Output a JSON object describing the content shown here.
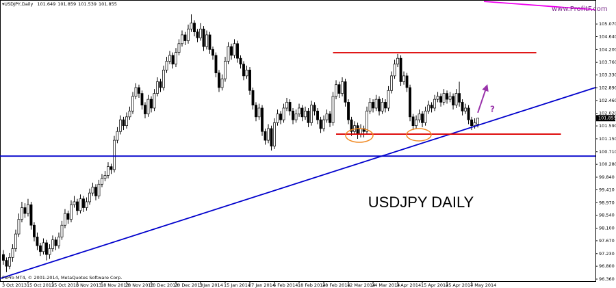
{
  "chart_data": {
    "type": "candlestick",
    "title": "USDJPY,Daily",
    "watermark": "www.ProfitF.com",
    "copyright": "FxPro MT4, © 2001-2014, MetaQuotes Software Corp.",
    "annotation": "USDJPY  DAILY",
    "question": "?",
    "bull_color": "#ffffff",
    "bear_color": "#000000",
    "outline_color": "#000000",
    "ohlc": [
      [
        97.2,
        97.35,
        96.85,
        97.0
      ],
      [
        97.0,
        97.1,
        96.6,
        96.8
      ],
      [
        96.8,
        97.25,
        96.7,
        97.1
      ],
      [
        97.1,
        97.55,
        96.95,
        97.4
      ],
      [
        97.4,
        98.05,
        97.3,
        97.9
      ],
      [
        97.9,
        98.6,
        97.8,
        98.4
      ],
      [
        98.4,
        99.0,
        98.3,
        98.8
      ],
      [
        98.8,
        98.95,
        98.45,
        98.6
      ],
      [
        98.6,
        99.1,
        98.5,
        98.9
      ],
      [
        98.9,
        99.0,
        98.05,
        98.2
      ],
      [
        98.2,
        98.3,
        97.65,
        97.8
      ],
      [
        97.8,
        97.95,
        97.35,
        97.5
      ],
      [
        97.5,
        97.6,
        97.15,
        97.3
      ],
      [
        97.3,
        97.75,
        97.2,
        97.6
      ],
      [
        97.6,
        97.7,
        97.0,
        97.2
      ],
      [
        97.2,
        97.55,
        97.05,
        97.4
      ],
      [
        97.4,
        97.85,
        97.3,
        97.7
      ],
      [
        97.7,
        97.8,
        97.35,
        97.5
      ],
      [
        97.5,
        97.95,
        97.4,
        97.8
      ],
      [
        97.8,
        98.35,
        97.7,
        98.2
      ],
      [
        98.2,
        98.75,
        98.1,
        98.6
      ],
      [
        98.6,
        98.7,
        98.25,
        98.4
      ],
      [
        98.4,
        99.05,
        98.3,
        98.9
      ],
      [
        98.9,
        99.2,
        98.8,
        99.0
      ],
      [
        99.0,
        99.1,
        98.55,
        98.7
      ],
      [
        98.7,
        99.25,
        98.6,
        99.1
      ],
      [
        99.1,
        99.2,
        98.65,
        98.8
      ],
      [
        98.8,
        99.15,
        98.7,
        99.0
      ],
      [
        99.0,
        99.45,
        98.9,
        99.3
      ],
      [
        99.3,
        99.65,
        99.2,
        99.5
      ],
      [
        99.5,
        99.6,
        99.05,
        99.2
      ],
      [
        99.2,
        99.75,
        99.1,
        99.6
      ],
      [
        99.6,
        99.95,
        99.5,
        99.8
      ],
      [
        99.8,
        100.05,
        99.7,
        99.9
      ],
      [
        99.9,
        100.35,
        99.8,
        100.2
      ],
      [
        100.2,
        100.3,
        99.95,
        100.1
      ],
      [
        100.1,
        101.25,
        100.0,
        101.1
      ],
      [
        101.1,
        101.55,
        101.0,
        101.4
      ],
      [
        101.4,
        101.95,
        101.3,
        101.8
      ],
      [
        101.8,
        101.9,
        101.45,
        101.6
      ],
      [
        101.6,
        102.05,
        101.5,
        101.9
      ],
      [
        101.9,
        102.25,
        101.8,
        102.1
      ],
      [
        102.1,
        102.75,
        102.0,
        102.6
      ],
      [
        102.6,
        103.05,
        102.5,
        102.9
      ],
      [
        102.9,
        103.0,
        102.55,
        102.7
      ],
      [
        102.7,
        102.8,
        102.15,
        102.3
      ],
      [
        102.3,
        102.4,
        101.85,
        102.0
      ],
      [
        102.0,
        102.65,
        101.9,
        102.5
      ],
      [
        102.5,
        102.6,
        102.05,
        102.2
      ],
      [
        102.2,
        102.85,
        102.1,
        102.7
      ],
      [
        102.7,
        103.25,
        102.6,
        103.1
      ],
      [
        103.1,
        103.2,
        102.75,
        102.9
      ],
      [
        102.9,
        103.65,
        102.8,
        103.5
      ],
      [
        103.5,
        103.95,
        103.4,
        103.8
      ],
      [
        103.8,
        104.15,
        103.7,
        104.0
      ],
      [
        104.0,
        104.1,
        103.55,
        103.7
      ],
      [
        103.7,
        104.25,
        103.6,
        104.1
      ],
      [
        104.1,
        104.55,
        104.0,
        104.4
      ],
      [
        104.4,
        104.85,
        104.3,
        104.7
      ],
      [
        104.7,
        104.8,
        104.35,
        104.5
      ],
      [
        104.5,
        105.05,
        104.4,
        104.9
      ],
      [
        104.9,
        105.4,
        104.8,
        105.1
      ],
      [
        105.1,
        105.2,
        104.65,
        104.8
      ],
      [
        104.8,
        104.9,
        104.45,
        104.6
      ],
      [
        104.6,
        105.1,
        104.5,
        104.9
      ],
      [
        104.9,
        105.0,
        104.15,
        104.3
      ],
      [
        104.3,
        104.85,
        104.2,
        104.7
      ],
      [
        104.7,
        104.8,
        104.05,
        104.2
      ],
      [
        104.2,
        104.3,
        103.85,
        104.0
      ],
      [
        104.0,
        104.1,
        103.25,
        103.4
      ],
      [
        103.4,
        103.5,
        102.75,
        102.9
      ],
      [
        102.9,
        103.35,
        102.8,
        103.2
      ],
      [
        103.2,
        103.95,
        103.1,
        103.8
      ],
      [
        103.8,
        104.45,
        103.7,
        104.3
      ],
      [
        104.3,
        104.4,
        103.85,
        104.0
      ],
      [
        104.0,
        104.55,
        103.9,
        104.4
      ],
      [
        104.4,
        104.5,
        103.75,
        103.9
      ],
      [
        103.9,
        104.0,
        103.55,
        103.7
      ],
      [
        103.7,
        103.8,
        103.15,
        103.3
      ],
      [
        103.3,
        103.65,
        103.2,
        103.5
      ],
      [
        103.5,
        103.6,
        102.65,
        102.8
      ],
      [
        102.8,
        102.9,
        102.15,
        102.3
      ],
      [
        102.3,
        102.4,
        101.75,
        101.9
      ],
      [
        101.9,
        102.35,
        101.8,
        102.2
      ],
      [
        102.2,
        102.3,
        101.25,
        101.4
      ],
      [
        101.4,
        101.5,
        100.95,
        101.1
      ],
      [
        101.1,
        101.65,
        101.0,
        101.5
      ],
      [
        101.5,
        101.6,
        100.75,
        100.9
      ],
      [
        100.9,
        101.85,
        100.8,
        101.7
      ],
      [
        101.7,
        102.15,
        101.6,
        102.0
      ],
      [
        102.0,
        102.1,
        101.65,
        101.8
      ],
      [
        101.8,
        102.35,
        101.7,
        102.2
      ],
      [
        102.2,
        102.55,
        102.1,
        102.4
      ],
      [
        102.4,
        102.5,
        101.95,
        102.1
      ],
      [
        102.1,
        102.2,
        101.65,
        101.8
      ],
      [
        101.8,
        102.15,
        101.7,
        102.0
      ],
      [
        102.0,
        102.35,
        101.9,
        102.2
      ],
      [
        102.2,
        102.3,
        101.75,
        101.9
      ],
      [
        101.9,
        102.25,
        101.8,
        102.1
      ],
      [
        102.1,
        102.2,
        101.55,
        101.7
      ],
      [
        101.7,
        102.45,
        101.6,
        102.3
      ],
      [
        102.3,
        102.4,
        101.95,
        102.1
      ],
      [
        102.1,
        102.2,
        101.65,
        101.8
      ],
      [
        101.8,
        101.9,
        101.35,
        101.5
      ],
      [
        101.5,
        101.95,
        101.4,
        101.8
      ],
      [
        101.8,
        102.15,
        101.7,
        102.0
      ],
      [
        102.0,
        102.1,
        101.55,
        101.7
      ],
      [
        101.7,
        102.75,
        101.6,
        102.6
      ],
      [
        102.6,
        103.15,
        102.5,
        103.0
      ],
      [
        103.0,
        103.1,
        102.55,
        102.7
      ],
      [
        102.7,
        103.25,
        102.6,
        103.1
      ],
      [
        103.1,
        103.2,
        102.25,
        102.4
      ],
      [
        102.4,
        102.5,
        101.65,
        101.8
      ],
      [
        101.8,
        101.9,
        101.25,
        101.4
      ],
      [
        101.4,
        101.75,
        101.3,
        101.6
      ],
      [
        101.6,
        101.7,
        101.15,
        101.3
      ],
      [
        101.3,
        101.65,
        101.2,
        101.5
      ],
      [
        101.5,
        101.6,
        101.2,
        101.4
      ],
      [
        101.4,
        102.25,
        101.3,
        102.1
      ],
      [
        102.1,
        102.55,
        102.0,
        102.4
      ],
      [
        102.4,
        102.5,
        102.05,
        102.2
      ],
      [
        102.2,
        102.65,
        102.1,
        102.5
      ],
      [
        102.5,
        102.6,
        101.95,
        102.1
      ],
      [
        102.1,
        102.55,
        102.0,
        102.4
      ],
      [
        102.4,
        102.5,
        102.05,
        102.2
      ],
      [
        102.2,
        102.95,
        102.1,
        102.8
      ],
      [
        102.8,
        103.45,
        102.7,
        103.3
      ],
      [
        103.3,
        103.85,
        103.2,
        103.7
      ],
      [
        103.7,
        104.05,
        103.6,
        103.9
      ],
      [
        103.9,
        104.0,
        102.95,
        103.1
      ],
      [
        103.1,
        103.45,
        103.0,
        103.3
      ],
      [
        103.3,
        103.4,
        102.75,
        102.9
      ],
      [
        102.9,
        103.0,
        101.75,
        101.9
      ],
      [
        101.9,
        102.0,
        101.45,
        101.6
      ],
      [
        101.6,
        101.95,
        101.5,
        101.8
      ],
      [
        101.8,
        102.15,
        101.7,
        102.0
      ],
      [
        102.0,
        102.1,
        101.55,
        101.7
      ],
      [
        101.7,
        102.25,
        101.6,
        102.1
      ],
      [
        102.1,
        102.45,
        102.0,
        102.3
      ],
      [
        102.3,
        102.4,
        102.05,
        102.2
      ],
      [
        102.2,
        102.65,
        102.1,
        102.5
      ],
      [
        102.5,
        102.75,
        102.4,
        102.6
      ],
      [
        102.6,
        102.7,
        102.25,
        102.4
      ],
      [
        102.4,
        102.85,
        102.3,
        102.7
      ],
      [
        102.7,
        102.8,
        102.35,
        102.5
      ],
      [
        102.5,
        102.75,
        102.4,
        102.6
      ],
      [
        102.6,
        102.7,
        102.15,
        102.3
      ],
      [
        102.3,
        102.85,
        102.2,
        102.7
      ],
      [
        102.7,
        103.1,
        102.25,
        102.4
      ],
      [
        102.4,
        102.5,
        101.95,
        102.1
      ],
      [
        102.1,
        102.35,
        102.0,
        102.2
      ],
      [
        102.2,
        102.3,
        101.65,
        101.8
      ],
      [
        101.8,
        101.9,
        101.45,
        101.6
      ],
      [
        101.6,
        101.85,
        101.5,
        101.7
      ],
      [
        101.649,
        101.859,
        101.539,
        101.855
      ]
    ],
    "xlim": [
      -1.1,
      192.2
    ],
    "xticks": [
      {
        "value": 0,
        "label": "3 Oct 2013"
      },
      {
        "value": 8,
        "label": "15 Oct 2013"
      },
      {
        "value": 16,
        "label": "25 Oct 2013"
      },
      {
        "value": 24,
        "label": "6 Nov 2013"
      },
      {
        "value": 32,
        "label": "18 Nov 2013"
      },
      {
        "value": 40,
        "label": "28 Nov 2013"
      },
      {
        "value": 48,
        "label": "10 Dec 2013"
      },
      {
        "value": 56,
        "label": "20 Dec 2013"
      },
      {
        "value": 64,
        "label": "3 Jan 2014"
      },
      {
        "value": 72,
        "label": "15 Jan 2014"
      },
      {
        "value": 80,
        "label": "27 Jan 2014"
      },
      {
        "value": 88,
        "label": "6 Feb 2014"
      },
      {
        "value": 96,
        "label": "18 Feb 2014"
      },
      {
        "value": 104,
        "label": "28 Feb 2014"
      },
      {
        "value": 112,
        "label": "12 Mar 2014"
      },
      {
        "value": 120,
        "label": "24 Mar 2014"
      },
      {
        "value": 128,
        "label": "3 Apr 2014"
      },
      {
        "value": 136,
        "label": "15 Apr 2014"
      },
      {
        "value": 144,
        "label": "25 Apr 2014"
      },
      {
        "value": 152,
        "label": "7 May 2014"
      }
    ],
    "ylim": [
      96.29,
      105.89
    ],
    "yticks": [
      {
        "value": 105.07,
        "label": "105.070"
      },
      {
        "value": 104.64,
        "label": "104.640"
      },
      {
        "value": 104.2,
        "label": "104.200"
      },
      {
        "value": 103.76,
        "label": "103.760"
      },
      {
        "value": 103.33,
        "label": "103.330"
      },
      {
        "value": 102.89,
        "label": "102.890"
      },
      {
        "value": 102.46,
        "label": "102.460"
      },
      {
        "value": 102.02,
        "label": "102.020"
      },
      {
        "value": 101.59,
        "label": "101.590"
      },
      {
        "value": 101.15,
        "label": "101.150"
      },
      {
        "value": 100.71,
        "label": "100.710"
      },
      {
        "value": 100.28,
        "label": "100.280"
      },
      {
        "value": 99.84,
        "label": "99.840"
      },
      {
        "value": 99.41,
        "label": "99.410"
      },
      {
        "value": 98.97,
        "label": "98.970"
      },
      {
        "value": 98.54,
        "label": "98.540"
      },
      {
        "value": 98.1,
        "label": "98.100"
      },
      {
        "value": 97.67,
        "label": "97.670"
      },
      {
        "value": 97.23,
        "label": "97.230"
      },
      {
        "value": 96.8,
        "label": "96.800"
      },
      {
        "value": 96.36,
        "label": "96.360"
      }
    ],
    "grid": false,
    "lines": [
      {
        "color": "#0000cc",
        "x": [
          -1.1,
          192.2
        ],
        "y": [
          96.38,
          102.9
        ]
      },
      {
        "color": "#0000cc",
        "x": [
          -1.1,
          192.2
        ],
        "y": [
          100.56,
          100.56
        ]
      },
      {
        "color": "#dd0000",
        "x": [
          107,
          173
        ],
        "y": [
          104.09,
          104.09
        ]
      },
      {
        "color": "#dd0000",
        "x": [
          108,
          181
        ],
        "y": [
          101.31,
          101.31
        ]
      },
      {
        "color": "#ee00ee",
        "x": [
          156,
          192
        ],
        "y": [
          105.84,
          105.56
        ]
      },
      {
        "color": "#9933aa",
        "x": [
          154,
          157
        ],
        "y": [
          102.04,
          102.97
        ],
        "arrow": true
      }
    ]
  }
}
